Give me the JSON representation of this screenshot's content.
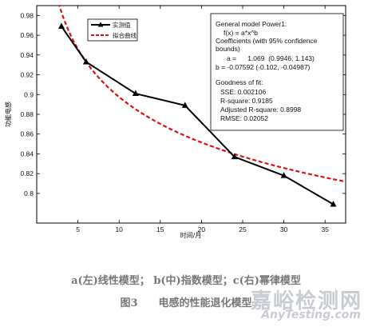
{
  "chart_data": {
    "type": "line",
    "xlabel": "时间/月",
    "ylabel": "功能电感",
    "xlim": [
      0,
      37.5
    ],
    "ylim": [
      0.77,
      0.99
    ],
    "xticks": [
      5,
      10,
      15,
      20,
      25,
      30,
      35
    ],
    "yticks": [
      0.8,
      0.82,
      0.84,
      0.86,
      0.88,
      0.9,
      0.92,
      0.94,
      0.96,
      0.98
    ],
    "series": [
      {
        "name": "实测值",
        "style": "solid-black-triangle",
        "color": "#000000",
        "x": [
          3,
          6,
          12,
          18,
          24,
          30,
          36
        ],
        "y": [
          0.969,
          0.933,
          0.901,
          0.889,
          0.837,
          0.818,
          0.789
        ]
      },
      {
        "name": "拟合曲线",
        "style": "dashed-red",
        "color": "#dd1111",
        "function": {
          "form": "power",
          "a": 1.069,
          "b": -0.07592
        }
      }
    ],
    "legend_position": "top-left",
    "grid": false,
    "fit_box": {
      "lines": [
        "General model Power1:",
        "f(x) = a*x^b",
        "Coefficients (with 95% confidence",
        "bounds)",
        "a =      1.069  (0.9946, 1.143)",
        "b = -0.07592 (-0.102, -0.04987)",
        "Goodness of fit:",
        "SSE: 0.002106",
        "R-square: 0.9185",
        "Adjusted R-square: 0.8998",
        "RMSE: 0.02052"
      ]
    }
  },
  "caption": {
    "line1": "a(左)线性模型； b(中)指数模型；c(右)幂律模型",
    "line2": "图3　　电感的性能退化模型"
  },
  "watermark": {
    "cn": "嘉峪检测网",
    "en": "AnyTesting.com"
  }
}
